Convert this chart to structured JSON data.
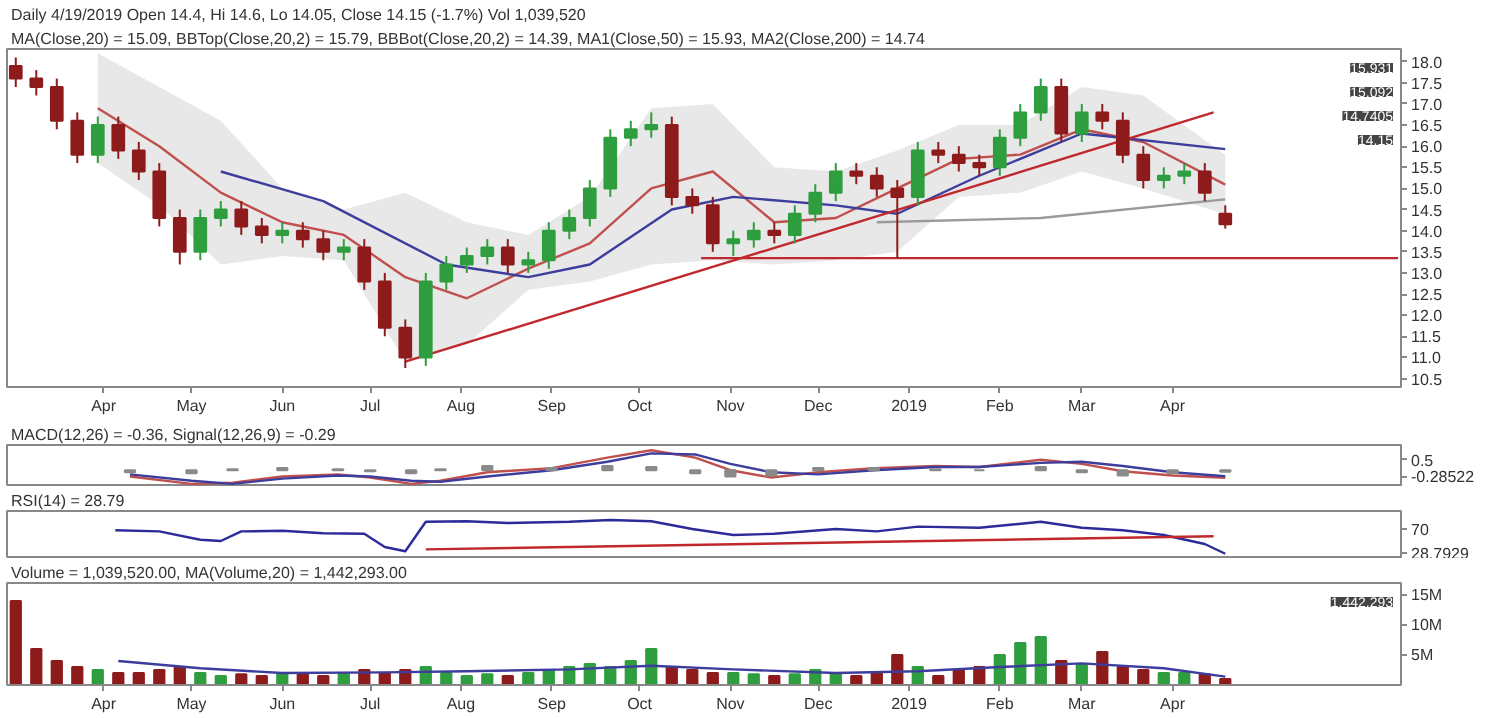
{
  "chart_data": [
    {
      "type": "candlestick",
      "title": "Daily 4/19/2019 Open 14.4, Hi 14.6, Lo 14.05, Close 14.15 (-1.7%) Vol 1,039,520",
      "subtitle": "MA(Close,20) = 15.09, BBTop(Close,20,2) = 15.79, BBBot(Close,20,2) = 14.39, MA1(Close,50) = 15.93, MA2(Close,200) = 14.74",
      "x": [
        "2018-03-02",
        "2018-03-09",
        "2018-03-16",
        "2018-03-23",
        "2018-03-30",
        "2018-04-06",
        "2018-04-13",
        "2018-04-20",
        "2018-04-27",
        "2018-05-04",
        "2018-05-11",
        "2018-05-18",
        "2018-05-25",
        "2018-06-01",
        "2018-06-08",
        "2018-06-15",
        "2018-06-22",
        "2018-06-29",
        "2018-07-06",
        "2018-07-13",
        "2018-07-20",
        "2018-07-27",
        "2018-08-03",
        "2018-08-10",
        "2018-08-17",
        "2018-08-24",
        "2018-08-31",
        "2018-09-07",
        "2018-09-14",
        "2018-09-21",
        "2018-09-28",
        "2018-10-05",
        "2018-10-12",
        "2018-10-19",
        "2018-10-26",
        "2018-11-02",
        "2018-11-09",
        "2018-11-16",
        "2018-11-23",
        "2018-11-30",
        "2018-12-07",
        "2018-12-14",
        "2018-12-21",
        "2018-12-28",
        "2019-01-04",
        "2019-01-11",
        "2019-01-18",
        "2019-01-25",
        "2019-02-01",
        "2019-02-08",
        "2019-02-15",
        "2019-02-22",
        "2019-03-01",
        "2019-03-08",
        "2019-03-15",
        "2019-03-22",
        "2019-03-29",
        "2019-04-05",
        "2019-04-12",
        "2019-04-19"
      ],
      "ohlc": [
        [
          17.9,
          18.1,
          17.4,
          17.6
        ],
        [
          17.6,
          17.8,
          17.2,
          17.4
        ],
        [
          17.4,
          17.6,
          16.4,
          16.6
        ],
        [
          16.6,
          16.8,
          15.6,
          15.8
        ],
        [
          15.8,
          16.7,
          15.6,
          16.5
        ],
        [
          16.5,
          16.7,
          15.7,
          15.9
        ],
        [
          15.9,
          16.1,
          15.2,
          15.4
        ],
        [
          15.4,
          15.6,
          14.1,
          14.3
        ],
        [
          14.3,
          14.5,
          13.2,
          13.5
        ],
        [
          13.5,
          14.5,
          13.3,
          14.3
        ],
        [
          14.3,
          14.7,
          14.1,
          14.5
        ],
        [
          14.5,
          14.7,
          13.9,
          14.1
        ],
        [
          14.1,
          14.3,
          13.7,
          13.9
        ],
        [
          13.9,
          14.2,
          13.7,
          14.0
        ],
        [
          14.0,
          14.2,
          13.6,
          13.8
        ],
        [
          13.8,
          14.0,
          13.3,
          13.5
        ],
        [
          13.5,
          13.8,
          13.3,
          13.6
        ],
        [
          13.6,
          13.8,
          12.6,
          12.8
        ],
        [
          12.8,
          13.0,
          11.5,
          11.7
        ],
        [
          11.7,
          11.9,
          10.75,
          11.0
        ],
        [
          11.0,
          13.0,
          10.8,
          12.8
        ],
        [
          12.8,
          13.4,
          12.6,
          13.2
        ],
        [
          13.2,
          13.6,
          13.0,
          13.4
        ],
        [
          13.4,
          13.8,
          13.2,
          13.6
        ],
        [
          13.6,
          13.8,
          13.0,
          13.2
        ],
        [
          13.2,
          13.5,
          13.0,
          13.3
        ],
        [
          13.3,
          14.2,
          13.1,
          14.0
        ],
        [
          14.0,
          14.5,
          13.8,
          14.3
        ],
        [
          14.3,
          15.2,
          14.1,
          15.0
        ],
        [
          15.0,
          16.4,
          14.8,
          16.2
        ],
        [
          16.2,
          16.6,
          16.0,
          16.4
        ],
        [
          16.4,
          16.8,
          16.2,
          16.5
        ],
        [
          16.5,
          16.7,
          14.6,
          14.8
        ],
        [
          14.8,
          15.0,
          14.4,
          14.6
        ],
        [
          14.6,
          14.8,
          13.5,
          13.7
        ],
        [
          13.7,
          14.0,
          13.4,
          13.8
        ],
        [
          13.8,
          14.2,
          13.6,
          14.0
        ],
        [
          14.0,
          14.2,
          13.7,
          13.9
        ],
        [
          13.9,
          14.6,
          13.7,
          14.4
        ],
        [
          14.4,
          15.1,
          14.2,
          14.9
        ],
        [
          14.9,
          15.6,
          14.7,
          15.4
        ],
        [
          15.4,
          15.6,
          15.1,
          15.3
        ],
        [
          15.3,
          15.5,
          14.8,
          15.0
        ],
        [
          15.0,
          15.2,
          13.35,
          14.8
        ],
        [
          14.8,
          16.1,
          14.6,
          15.9
        ],
        [
          15.9,
          16.1,
          15.6,
          15.8
        ],
        [
          15.8,
          16.0,
          15.4,
          15.6
        ],
        [
          15.6,
          15.8,
          15.3,
          15.5
        ],
        [
          15.5,
          16.4,
          15.3,
          16.2
        ],
        [
          16.2,
          17.0,
          16.0,
          16.8
        ],
        [
          16.8,
          17.6,
          16.6,
          17.4
        ],
        [
          17.4,
          17.6,
          16.1,
          16.3
        ],
        [
          16.3,
          17.0,
          16.1,
          16.8
        ],
        [
          16.8,
          17.0,
          16.4,
          16.6
        ],
        [
          16.6,
          16.8,
          15.6,
          15.8
        ],
        [
          15.8,
          16.0,
          15.0,
          15.2
        ],
        [
          15.2,
          15.5,
          15.0,
          15.3
        ],
        [
          15.3,
          15.6,
          15.1,
          15.4
        ],
        [
          15.4,
          15.6,
          14.7,
          14.9
        ],
        [
          14.4,
          14.6,
          14.05,
          14.15
        ]
      ],
      "colors": [
        "#8e1b1b",
        "#8e1b1b",
        "#8e1b1b",
        "#8e1b1b",
        "#2e9e3e",
        "#8e1b1b",
        "#8e1b1b",
        "#8e1b1b",
        "#8e1b1b",
        "#2e9e3e",
        "#2e9e3e",
        "#8e1b1b",
        "#8e1b1b",
        "#2e9e3e",
        "#8e1b1b",
        "#8e1b1b",
        "#2e9e3e",
        "#8e1b1b",
        "#8e1b1b",
        "#8e1b1b",
        "#2e9e3e",
        "#2e9e3e",
        "#2e9e3e",
        "#2e9e3e",
        "#8e1b1b",
        "#2e9e3e",
        "#2e9e3e",
        "#2e9e3e",
        "#2e9e3e",
        "#2e9e3e",
        "#2e9e3e",
        "#2e9e3e",
        "#8e1b1b",
        "#8e1b1b",
        "#8e1b1b",
        "#2e9e3e",
        "#2e9e3e",
        "#8e1b1b",
        "#2e9e3e",
        "#2e9e3e",
        "#2e9e3e",
        "#8e1b1b",
        "#8e1b1b",
        "#8e1b1b",
        "#2e9e3e",
        "#8e1b1b",
        "#8e1b1b",
        "#8e1b1b",
        "#2e9e3e",
        "#2e9e3e",
        "#2e9e3e",
        "#8e1b1b",
        "#2e9e3e",
        "#8e1b1b",
        "#8e1b1b",
        "#8e1b1b",
        "#2e9e3e",
        "#2e9e3e",
        "#8e1b1b",
        "#8e1b1b"
      ],
      "series": [
        {
          "type": "line",
          "color": "#c0504d",
          "x": [
            "2018-03-30",
            "2018-04-20",
            "2018-05-11",
            "2018-06-01",
            "2018-06-22",
            "2018-07-13",
            "2018-08-03",
            "2018-08-24",
            "2018-09-14",
            "2018-10-05",
            "2018-10-26",
            "2018-11-16",
            "2018-12-07",
            "2018-12-28",
            "2019-01-18",
            "2019-02-08",
            "2019-03-01",
            "2019-03-22",
            "2019-04-19"
          ],
          "values": [
            16.9,
            16.0,
            14.9,
            14.2,
            13.9,
            12.9,
            12.4,
            13.1,
            13.7,
            15.0,
            15.4,
            14.2,
            14.3,
            15.0,
            15.7,
            15.8,
            16.4,
            16.1,
            15.09
          ],
          "lower": [
            15.6,
            14.6,
            13.2,
            13.4,
            13.3,
            10.9,
            11.3,
            12.6,
            12.8,
            13.2,
            13.3,
            13.2,
            13.3,
            13.5,
            14.8,
            14.9,
            15.4,
            15.0,
            14.39
          ],
          "upper": [
            18.2,
            17.4,
            16.6,
            15.0,
            14.5,
            14.9,
            14.2,
            13.9,
            14.8,
            16.9,
            17.0,
            15.5,
            15.4,
            15.9,
            16.5,
            16.5,
            17.4,
            17.2,
            15.79
          ]
        },
        {
          "type": "line",
          "color": "#3d3d9e",
          "x": [
            "2018-05-11",
            "2018-06-15",
            "2018-07-27",
            "2018-08-24",
            "2018-09-14",
            "2018-10-12",
            "2018-11-02",
            "2018-12-07",
            "2018-12-28",
            "2019-01-25",
            "2019-03-01",
            "2019-04-19"
          ],
          "values": [
            15.4,
            14.7,
            13.2,
            12.9,
            13.2,
            14.5,
            14.8,
            14.6,
            14.4,
            15.3,
            16.3,
            15.93
          ]
        },
        {
          "type": "line",
          "color": "#9a9a9a",
          "x": [
            "2018-12-21",
            "2019-02-15",
            "2019-04-19"
          ],
          "values": [
            14.2,
            14.3,
            14.74
          ]
        },
        {
          "type": "line",
          "color": "#c0282d",
          "x": [
            "2018-07-13",
            "2019-04-15"
          ],
          "values": [
            10.9,
            16.8
          ]
        },
        {
          "type": "line",
          "color": "#c0282d",
          "x": [
            "2018-10-22",
            "2019-06-17"
          ],
          "values": [
            13.35,
            13.35
          ]
        }
      ],
      "annotations": [
        "15.931",
        "15.092",
        "14.7405",
        "14.15"
      ],
      "xlim": [
        "2018-02-27",
        "2019-06-18"
      ],
      "xticks": [
        {
          "value": "2018-04-01",
          "label": "Apr"
        },
        {
          "value": "2018-05-01",
          "label": "May"
        },
        {
          "value": "2018-06-01",
          "label": "Jun"
        },
        {
          "value": "2018-07-01",
          "label": "Jul"
        },
        {
          "value": "2018-08-01",
          "label": "Aug"
        },
        {
          "value": "2018-09-01",
          "label": "Sep"
        },
        {
          "value": "2018-10-01",
          "label": "Oct"
        },
        {
          "value": "2018-11-01",
          "label": "Nov"
        },
        {
          "value": "2018-12-01",
          "label": "Dec"
        },
        {
          "value": "2019-01-01",
          "label": "2019"
        },
        {
          "value": "2019-02-01",
          "label": "Feb"
        },
        {
          "value": "2019-03-01",
          "label": "Mar"
        },
        {
          "value": "2019-04-01",
          "label": "Apr"
        }
      ],
      "ylim": [
        10.3,
        18.3
      ],
      "yticks": [
        10.5,
        {
          "value": 11,
          "label": "11.0"
        },
        11.5,
        {
          "value": 12,
          "label": "12.0"
        },
        12.5,
        {
          "value": 13,
          "label": "13.0"
        },
        13.5,
        {
          "value": 14,
          "label": "14.0"
        },
        14.5,
        {
          "value": 15,
          "label": "15.0"
        },
        15.5,
        {
          "value": 16,
          "label": "16.0"
        },
        16.5,
        {
          "value": 17,
          "label": "17.0"
        },
        17.5,
        {
          "value": 18,
          "label": "18.0"
        }
      ],
      "grid": false
    },
    {
      "type": "line",
      "title": "MACD(12,26) = -0.36, Signal(12,26,9) = -0.29",
      "series": [
        {
          "type": "line",
          "color": "#c0504d",
          "x": [
            "2018-04-10",
            "2018-05-01",
            "2018-05-15",
            "2018-06-01",
            "2018-06-20",
            "2018-07-01",
            "2018-07-15",
            "2018-07-25",
            "2018-08-10",
            "2018-09-01",
            "2018-09-20",
            "2018-10-05",
            "2018-10-20",
            "2018-11-01",
            "2018-11-15",
            "2018-12-01",
            "2018-12-20",
            "2019-01-10",
            "2019-01-25",
            "2019-02-15",
            "2019-03-01",
            "2019-03-15",
            "2019-04-01",
            "2019-04-19"
          ],
          "values": [
            -0.3,
            -0.65,
            -0.6,
            -0.3,
            -0.2,
            -0.35,
            -0.65,
            -0.5,
            -0.1,
            0.1,
            0.6,
            0.95,
            0.6,
            0.0,
            -0.35,
            -0.1,
            0.1,
            0.2,
            0.15,
            0.5,
            0.3,
            -0.05,
            -0.25,
            -0.36
          ]
        },
        {
          "type": "line",
          "color": "#3d3d9e",
          "x": [
            "2018-04-10",
            "2018-05-01",
            "2018-05-15",
            "2018-06-01",
            "2018-06-20",
            "2018-07-01",
            "2018-07-15",
            "2018-07-25",
            "2018-08-10",
            "2018-09-01",
            "2018-09-20",
            "2018-10-05",
            "2018-10-20",
            "2018-11-01",
            "2018-11-15",
            "2018-12-01",
            "2018-12-20",
            "2019-01-10",
            "2019-01-25",
            "2019-02-15",
            "2019-03-01",
            "2019-03-15",
            "2019-04-01",
            "2019-04-19"
          ],
          "values": [
            -0.2,
            -0.5,
            -0.65,
            -0.4,
            -0.25,
            -0.3,
            -0.5,
            -0.55,
            -0.3,
            0.0,
            0.4,
            0.8,
            0.75,
            0.3,
            -0.1,
            -0.2,
            0.0,
            0.15,
            0.15,
            0.35,
            0.4,
            0.2,
            -0.1,
            -0.29
          ]
        },
        {
          "type": "bar",
          "color": "#8a8a8a",
          "x": [
            "2018-04-10",
            "2018-05-01",
            "2018-05-15",
            "2018-06-01",
            "2018-06-20",
            "2018-07-01",
            "2018-07-15",
            "2018-07-25",
            "2018-08-10",
            "2018-09-01",
            "2018-09-20",
            "2018-10-05",
            "2018-10-20",
            "2018-11-01",
            "2018-11-15",
            "2018-12-01",
            "2018-12-20",
            "2019-01-10",
            "2019-01-25",
            "2019-02-15",
            "2019-03-01",
            "2019-03-15",
            "2019-04-01",
            "2019-04-19"
          ],
          "values": [
            -0.1,
            -0.15,
            0.05,
            0.1,
            0.05,
            -0.05,
            -0.15,
            0.05,
            0.2,
            0.1,
            0.2,
            0.15,
            -0.15,
            -0.3,
            -0.25,
            0.1,
            0.1,
            0.05,
            0.0,
            0.15,
            -0.1,
            -0.25,
            -0.15,
            -0.07
          ]
        }
      ],
      "xlim": [
        "2018-02-27",
        "2019-06-18"
      ],
      "ylim": [
        -0.8,
        1.2
      ],
      "yticks": [
        0.5,
        {
          "value": -0.28522,
          "label": "-0.28522"
        }
      ],
      "tick_labels": "y",
      "grid": false
    },
    {
      "type": "line",
      "title": "RSI(14) = 28.79",
      "series": [
        {
          "type": "line",
          "color": "#2b2b9a",
          "x": [
            "2018-04-05",
            "2018-04-20",
            "2018-05-04",
            "2018-05-11",
            "2018-05-18",
            "2018-06-01",
            "2018-06-15",
            "2018-06-29",
            "2018-07-06",
            "2018-07-13",
            "2018-07-20",
            "2018-08-03",
            "2018-08-17",
            "2018-09-07",
            "2018-09-21",
            "2018-10-05",
            "2018-10-19",
            "2018-11-02",
            "2018-11-16",
            "2018-12-07",
            "2018-12-21",
            "2019-01-04",
            "2019-01-25",
            "2019-02-15",
            "2019-03-01",
            "2019-03-15",
            "2019-03-29",
            "2019-04-12",
            "2019-04-19"
          ],
          "values": [
            68,
            66,
            52,
            50,
            66,
            67,
            63,
            62,
            40,
            33,
            82,
            83,
            80,
            82,
            85,
            83,
            70,
            60,
            62,
            70,
            66,
            74,
            72,
            82,
            72,
            68,
            60,
            45,
            28.79
          ]
        },
        {
          "type": "line",
          "color": "#c0282d",
          "x": [
            "2018-07-20",
            "2019-04-15"
          ],
          "values": [
            36,
            58
          ]
        }
      ],
      "xlim": [
        "2018-02-27",
        "2019-06-18"
      ],
      "ylim": [
        20,
        100
      ],
      "yticks": [
        70,
        {
          "value": 28.7929,
          "label": "28.7929"
        }
      ],
      "tick_labels": "y",
      "grid": false
    },
    {
      "type": "bar",
      "title": "Volume = 1,039,520.00, MA(Volume,20) = 1,442,293.00",
      "x": [
        "2018-03-02",
        "2018-03-09",
        "2018-03-16",
        "2018-03-23",
        "2018-03-30",
        "2018-04-06",
        "2018-04-13",
        "2018-04-20",
        "2018-04-27",
        "2018-05-04",
        "2018-05-11",
        "2018-05-18",
        "2018-05-25",
        "2018-06-01",
        "2018-06-08",
        "2018-06-15",
        "2018-06-22",
        "2018-06-29",
        "2018-07-06",
        "2018-07-13",
        "2018-07-20",
        "2018-07-27",
        "2018-08-03",
        "2018-08-10",
        "2018-08-17",
        "2018-08-24",
        "2018-08-31",
        "2018-09-07",
        "2018-09-14",
        "2018-09-21",
        "2018-09-28",
        "2018-10-05",
        "2018-10-12",
        "2018-10-19",
        "2018-10-26",
        "2018-11-02",
        "2018-11-09",
        "2018-11-16",
        "2018-11-23",
        "2018-11-30",
        "2018-12-07",
        "2018-12-14",
        "2018-12-21",
        "2018-12-28",
        "2019-01-04",
        "2019-01-11",
        "2019-01-18",
        "2019-01-25",
        "2019-02-01",
        "2019-02-08",
        "2019-02-15",
        "2019-02-22",
        "2019-03-01",
        "2019-03-08",
        "2019-03-15",
        "2019-03-22",
        "2019-03-29",
        "2019-04-05",
        "2019-04-12",
        "2019-04-19"
      ],
      "values": [
        14,
        6,
        4,
        3,
        2.5,
        2,
        2,
        2.5,
        3,
        2,
        1.5,
        1.8,
        1.5,
        2,
        1.8,
        1.5,
        2,
        2.5,
        2,
        2.5,
        3,
        2,
        1.5,
        1.8,
        1.5,
        2,
        2.5,
        3,
        3.5,
        3,
        4,
        6,
        3,
        2.5,
        2,
        2,
        1.8,
        1.5,
        1.8,
        2.5,
        2,
        1.5,
        2,
        5,
        3,
        1.5,
        2.5,
        3,
        5,
        7,
        8,
        4,
        3.5,
        5.5,
        3,
        2.5,
        2,
        2,
        1.8,
        1.0
      ],
      "colors": [
        "#8e1b1b",
        "#8e1b1b",
        "#8e1b1b",
        "#8e1b1b",
        "#2e9e3e",
        "#8e1b1b",
        "#8e1b1b",
        "#8e1b1b",
        "#8e1b1b",
        "#2e9e3e",
        "#2e9e3e",
        "#8e1b1b",
        "#8e1b1b",
        "#2e9e3e",
        "#8e1b1b",
        "#8e1b1b",
        "#2e9e3e",
        "#8e1b1b",
        "#8e1b1b",
        "#8e1b1b",
        "#2e9e3e",
        "#2e9e3e",
        "#2e9e3e",
        "#2e9e3e",
        "#8e1b1b",
        "#2e9e3e",
        "#2e9e3e",
        "#2e9e3e",
        "#2e9e3e",
        "#2e9e3e",
        "#2e9e3e",
        "#2e9e3e",
        "#8e1b1b",
        "#8e1b1b",
        "#8e1b1b",
        "#2e9e3e",
        "#2e9e3e",
        "#8e1b1b",
        "#2e9e3e",
        "#2e9e3e",
        "#2e9e3e",
        "#8e1b1b",
        "#8e1b1b",
        "#8e1b1b",
        "#2e9e3e",
        "#8e1b1b",
        "#8e1b1b",
        "#8e1b1b",
        "#2e9e3e",
        "#2e9e3e",
        "#2e9e3e",
        "#8e1b1b",
        "#2e9e3e",
        "#8e1b1b",
        "#8e1b1b",
        "#8e1b1b",
        "#2e9e3e",
        "#2e9e3e",
        "#8e1b1b",
        "#8e1b1b"
      ],
      "series": [
        {
          "type": "line",
          "color": "#3d3d9e",
          "x": [
            "2018-04-06",
            "2018-05-04",
            "2018-06-01",
            "2018-07-06",
            "2018-08-03",
            "2018-09-07",
            "2018-10-05",
            "2018-11-02",
            "2018-12-07",
            "2019-01-04",
            "2019-02-01",
            "2019-03-01",
            "2019-03-29",
            "2019-04-19"
          ],
          "values": [
            4.0,
            2.8,
            2.0,
            2.1,
            2.3,
            2.6,
            3.2,
            2.6,
            2.0,
            2.3,
            3.0,
            3.6,
            2.8,
            1.4
          ]
        }
      ],
      "annotations": [
        "1,442,293"
      ],
      "xlim": [
        "2018-02-27",
        "2019-06-18"
      ],
      "xticks": [
        {
          "value": "2018-04-01",
          "label": "Apr"
        },
        {
          "value": "2018-05-01",
          "label": "May"
        },
        {
          "value": "2018-06-01",
          "label": "Jun"
        },
        {
          "value": "2018-07-01",
          "label": "Jul"
        },
        {
          "value": "2018-08-01",
          "label": "Aug"
        },
        {
          "value": "2018-09-01",
          "label": "Sep"
        },
        {
          "value": "2018-10-01",
          "label": "Oct"
        },
        {
          "value": "2018-11-01",
          "label": "Nov"
        },
        {
          "value": "2018-12-01",
          "label": "Dec"
        },
        {
          "value": "2019-01-01",
          "label": "2019"
        },
        {
          "value": "2019-02-01",
          "label": "Feb"
        },
        {
          "value": "2019-03-01",
          "label": "Mar"
        },
        {
          "value": "2019-04-01",
          "label": "Apr"
        }
      ],
      "ylim": [
        0,
        17
      ],
      "yticks": [
        {
          "value": 5,
          "label": "5M"
        },
        {
          "value": 10,
          "label": "10M"
        },
        {
          "value": 15,
          "label": "15M"
        }
      ],
      "grid": false
    }
  ]
}
